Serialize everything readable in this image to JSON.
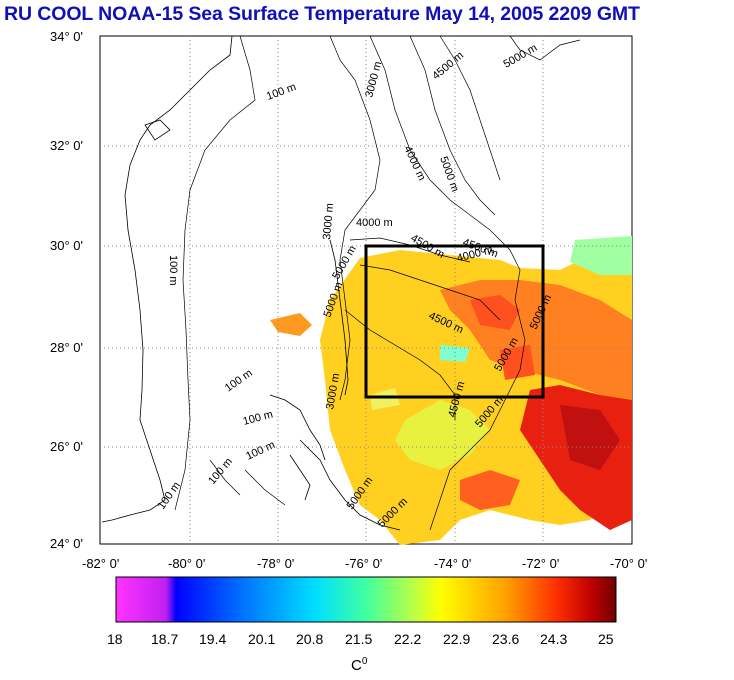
{
  "title": "RU COOL  NOAA-15 Sea Surface Temperature May 14, 2005 2209 GMT",
  "map": {
    "lat_labels": [
      "34° 0'",
      "32° 0'",
      "30° 0'",
      "28° 0'",
      "26° 0'",
      "24° 0'"
    ],
    "lon_labels": [
      "-82° 0'",
      "-80° 0'",
      "-78° 0'",
      "-76° 0'",
      "-74° 0'",
      "-72° 0'",
      "-70° 0'"
    ],
    "contour_labels": [
      "100 m",
      "100 m",
      "100 m",
      "100 m",
      "100 m",
      "100 m",
      "100 m",
      "3000 m",
      "3000 m",
      "3000 m",
      "4000 m",
      "4000 m",
      "4000 m",
      "4500 m",
      "4500 m",
      "4500 m",
      "4500 m",
      "5000 m",
      "5000 m",
      "5000 m",
      "5000 m",
      "5000 m",
      "5000 m",
      "5000 m",
      "5000 m",
      "4500 m",
      "5000 m"
    ],
    "study_box": {
      "lon_min": -76,
      "lon_max": -72,
      "lat_min": 27,
      "lat_max": 30
    }
  },
  "colorbar": {
    "ticks": [
      "18",
      "18.7",
      "19.4",
      "20.1",
      "20.8",
      "21.5",
      "22.2",
      "22.9",
      "23.6",
      "24.3",
      "25"
    ],
    "unit": "C",
    "unit_sup": "0",
    "colors": [
      "#ff33ff",
      "#c020f0",
      "#0000ff",
      "#0070ff",
      "#00e0ff",
      "#40ffa0",
      "#c0ff40",
      "#ffff00",
      "#ffa000",
      "#ff3000",
      "#c00000",
      "#700000"
    ]
  }
}
